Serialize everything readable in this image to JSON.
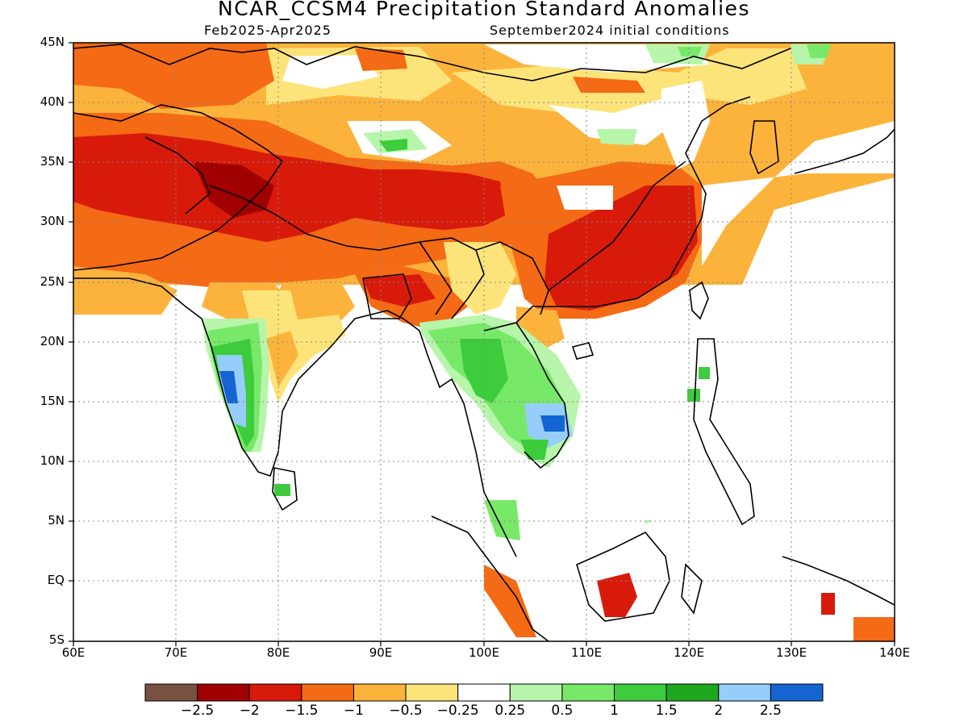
{
  "title": "NCAR_CCSM4 Precipitation Standard Anomalies",
  "subtitle_left": "Feb2025-Apr2025",
  "subtitle_right": "September2024 initial conditions",
  "lat_labels": [
    "45N",
    "40N",
    "35N",
    "30N",
    "25N",
    "20N",
    "15N",
    "10N",
    "5N",
    "EQ",
    "5S"
  ],
  "lon_labels": [
    "60E",
    "70E",
    "80E",
    "90E",
    "100E",
    "110E",
    "120E",
    "130E",
    "140E"
  ],
  "colorbar": {
    "colors": [
      "#7a5040",
      "#a00000",
      "#d81a0a",
      "#f56a14",
      "#fcb33c",
      "#fde47a",
      "#ffffff",
      "#b6f5aa",
      "#78e868",
      "#3ccc3c",
      "#1ea81e",
      "#96cdfa",
      "#1464d2"
    ],
    "labels": [
      "-2.5",
      "-2",
      "-1.5",
      "-1",
      "-0.5",
      "-0.25",
      "0.25",
      "0.5",
      "1",
      "1.5",
      "2",
      "2.5"
    ]
  },
  "map_extent": {
    "lon_min": 60,
    "lon_max": 140,
    "lat_min": -5,
    "lat_max": 45
  }
}
